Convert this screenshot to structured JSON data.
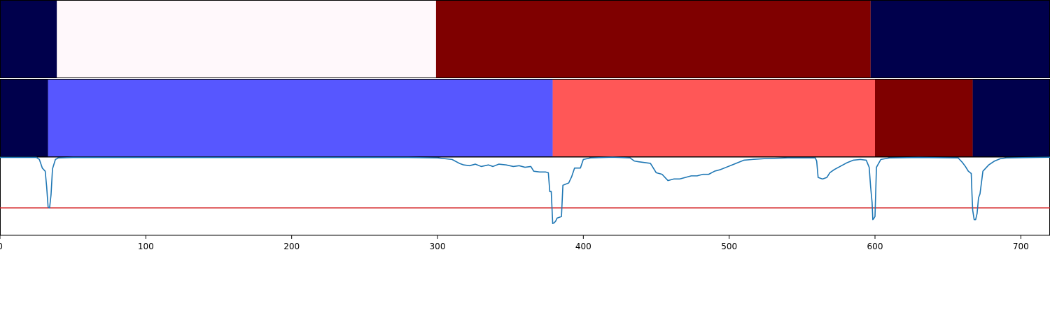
{
  "chart_data": {
    "type": "line",
    "title": "",
    "xlabel": "",
    "ylabel": "",
    "xlim": [
      0,
      720
    ],
    "x_ticks": [
      0,
      100,
      200,
      300,
      400,
      500,
      600,
      700
    ],
    "grid": false,
    "legend": "none",
    "segment_tracks": [
      {
        "name": "",
        "segments": [
          {
            "start": 0,
            "end": 39,
            "color": "#00004c"
          },
          {
            "start": 39,
            "end": 299,
            "color": "#fff8fb"
          },
          {
            "start": 299,
            "end": 597,
            "color": "#7f0000"
          },
          {
            "start": 597,
            "end": 720,
            "color": "#00004c"
          }
        ]
      },
      {
        "name": "",
        "segments": [
          {
            "start": 0,
            "end": 33,
            "color": "#00004c"
          },
          {
            "start": 33,
            "end": 379,
            "color": "#5757ff"
          },
          {
            "start": 379,
            "end": 600,
            "color": "#ff5757"
          },
          {
            "start": 600,
            "end": 667,
            "color": "#7f0000"
          },
          {
            "start": 667,
            "end": 720,
            "color": "#00004c"
          }
        ]
      }
    ],
    "line_panel": {
      "ylim": [
        0,
        1
      ],
      "series": [
        {
          "name": "",
          "color": "#1f77b4",
          "points": [
            [
              0,
              0.996
            ],
            [
              25,
              0.996
            ],
            [
              27,
              0.97
            ],
            [
              29,
              0.86
            ],
            [
              31,
              0.82
            ],
            [
              32,
              0.62
            ],
            [
              33,
              0.36
            ],
            [
              34,
              0.35
            ],
            [
              35,
              0.52
            ],
            [
              36,
              0.85
            ],
            [
              38,
              0.97
            ],
            [
              40,
              0.99
            ],
            [
              50,
              0.995
            ],
            [
              280,
              0.995
            ],
            [
              300,
              0.99
            ],
            [
              305,
              0.98
            ],
            [
              310,
              0.97
            ],
            [
              315,
              0.92
            ],
            [
              318,
              0.9
            ],
            [
              322,
              0.89
            ],
            [
              326,
              0.91
            ],
            [
              330,
              0.88
            ],
            [
              335,
              0.9
            ],
            [
              338,
              0.88
            ],
            [
              342,
              0.91
            ],
            [
              347,
              0.9
            ],
            [
              352,
              0.88
            ],
            [
              356,
              0.89
            ],
            [
              360,
              0.87
            ],
            [
              364,
              0.88
            ],
            [
              366,
              0.82
            ],
            [
              370,
              0.81
            ],
            [
              374,
              0.81
            ],
            [
              376,
              0.8
            ],
            [
              377,
              0.56
            ],
            [
              378,
              0.56
            ],
            [
              379,
              0.15
            ],
            [
              380,
              0.16
            ],
            [
              381,
              0.18
            ],
            [
              382,
              0.22
            ],
            [
              385,
              0.24
            ],
            [
              386,
              0.64
            ],
            [
              390,
              0.67
            ],
            [
              392,
              0.75
            ],
            [
              394,
              0.86
            ],
            [
              398,
              0.86
            ],
            [
              400,
              0.97
            ],
            [
              405,
              0.99
            ],
            [
              420,
              0.998
            ],
            [
              432,
              0.99
            ],
            [
              435,
              0.95
            ],
            [
              438,
              0.94
            ],
            [
              446,
              0.92
            ],
            [
              450,
              0.8
            ],
            [
              454,
              0.78
            ],
            [
              458,
              0.7
            ],
            [
              462,
              0.72
            ],
            [
              466,
              0.72
            ],
            [
              470,
              0.74
            ],
            [
              474,
              0.76
            ],
            [
              478,
              0.76
            ],
            [
              482,
              0.78
            ],
            [
              486,
              0.78
            ],
            [
              490,
              0.82
            ],
            [
              494,
              0.84
            ],
            [
              498,
              0.87
            ],
            [
              502,
              0.9
            ],
            [
              506,
              0.93
            ],
            [
              510,
              0.96
            ],
            [
              516,
              0.97
            ],
            [
              524,
              0.98
            ],
            [
              540,
              0.99
            ],
            [
              559,
              0.99
            ],
            [
              560,
              0.95
            ],
            [
              561,
              0.74
            ],
            [
              564,
              0.72
            ],
            [
              567,
              0.74
            ],
            [
              569,
              0.8
            ],
            [
              572,
              0.84
            ],
            [
              575,
              0.87
            ],
            [
              578,
              0.9
            ],
            [
              581,
              0.93
            ],
            [
              585,
              0.96
            ],
            [
              590,
              0.97
            ],
            [
              594,
              0.96
            ],
            [
              596,
              0.87
            ],
            [
              597,
              0.62
            ],
            [
              598,
              0.42
            ],
            [
              598.5,
              0.2
            ],
            [
              599,
              0.21
            ],
            [
              600,
              0.24
            ],
            [
              601,
              0.87
            ],
            [
              604,
              0.97
            ],
            [
              610,
              0.99
            ],
            [
              630,
              0.995
            ],
            [
              657,
              0.99
            ],
            [
              660,
              0.93
            ],
            [
              662,
              0.88
            ],
            [
              664,
              0.82
            ],
            [
              666,
              0.79
            ],
            [
              666.5,
              0.53
            ],
            [
              667,
              0.32
            ],
            [
              668,
              0.2
            ],
            [
              669,
              0.2
            ],
            [
              670,
              0.28
            ],
            [
              671,
              0.48
            ],
            [
              672,
              0.53
            ],
            [
              674,
              0.82
            ],
            [
              678,
              0.9
            ],
            [
              682,
              0.95
            ],
            [
              686,
              0.98
            ],
            [
              690,
              0.99
            ],
            [
              720,
              0.998
            ]
          ]
        }
      ],
      "reference_line": {
        "y": 0.35,
        "color": "#d62728"
      }
    }
  }
}
